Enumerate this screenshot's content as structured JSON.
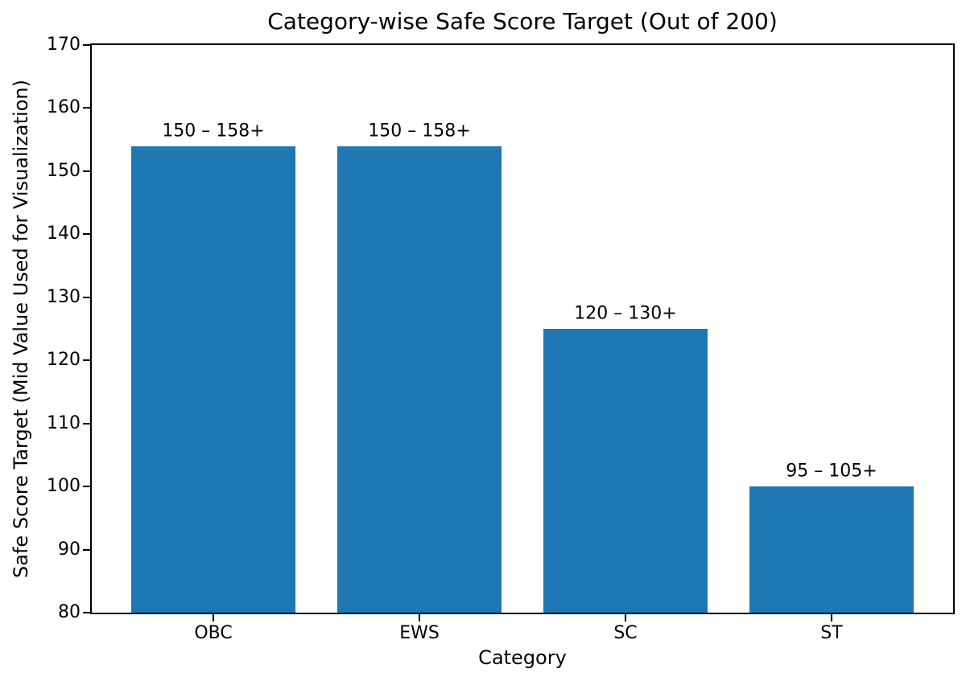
{
  "chart_data": {
    "type": "bar",
    "title": "Category-wise Safe Score Target (Out of 200)",
    "xlabel": "Category",
    "ylabel": "Safe Score Target (Mid Value Used for Visualization)",
    "categories": [
      "OBC",
      "EWS",
      "SC",
      "ST"
    ],
    "values": [
      154,
      154,
      125,
      100
    ],
    "bar_labels": [
      "150 – 158+",
      "150 – 158+",
      "120 – 130+",
      "95 – 105+"
    ],
    "ylim": [
      80,
      170
    ],
    "yticks": [
      80,
      90,
      100,
      110,
      120,
      130,
      140,
      150,
      160,
      170
    ],
    "xlim": [
      -0.59,
      3.59
    ],
    "bar_width": 0.8,
    "bar_color": "#1f77b4",
    "grid": false,
    "legend_position": "none"
  }
}
